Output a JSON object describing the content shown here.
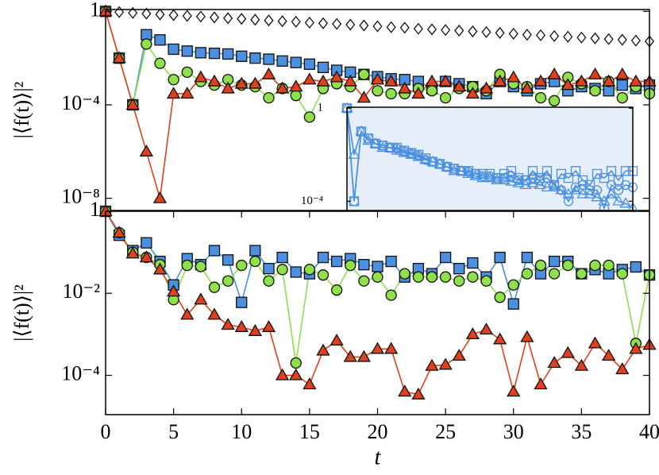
{
  "chart_data": [
    {
      "type": "line",
      "yscale": "log",
      "ylabel": "|⟨f(t)⟩|²",
      "xlim": [
        0,
        40
      ],
      "ylim": [
        3e-09,
        1.2
      ],
      "yticks": [
        1,
        {
          "value": 0.0001,
          "label": "10⁻⁴"
        },
        {
          "value": 1e-08,
          "label": "10⁻⁸"
        }
      ],
      "x": [
        0,
        1,
        2,
        3,
        4,
        5,
        6,
        7,
        8,
        9,
        10,
        11,
        12,
        13,
        14,
        15,
        16,
        17,
        18,
        19,
        20,
        21,
        22,
        23,
        24,
        25,
        26,
        27,
        28,
        29,
        30,
        31,
        32,
        33,
        34,
        35,
        36,
        37,
        38,
        39,
        40
      ],
      "series": [
        {
          "marker": "diamond",
          "line": false,
          "color": "#ffffff",
          "values": [
            1,
            0.93,
            0.86,
            0.8,
            0.74,
            0.69,
            0.64,
            0.6,
            0.55,
            0.51,
            0.48,
            0.44,
            0.41,
            0.38,
            0.36,
            0.33,
            0.31,
            0.29,
            0.27,
            0.25,
            0.23,
            0.21,
            0.2,
            0.18,
            0.17,
            0.16,
            0.15,
            0.14,
            0.13,
            0.12,
            0.11,
            0.1,
            0.095,
            0.088,
            0.082,
            0.076,
            0.07,
            0.065,
            0.061,
            0.056,
            0.052
          ]
        },
        {
          "marker": "square",
          "line": true,
          "color": "#4a8fe0",
          "values": [
            1,
            0.01,
            0.0001,
            0.1,
            0.06,
            0.024,
            0.02,
            0.017,
            0.016,
            0.015,
            0.012,
            0.01,
            0.009,
            0.0075,
            0.0065,
            0.0055,
            0.004,
            0.003,
            0.0025,
            0.002,
            0.0016,
            0.0013,
            0.0012,
            0.001,
            0.0005,
            0.001,
            0.0008,
            0.0006,
            0.0003,
            0.001,
            0.0006,
            0.0004,
            0.0008,
            0.001,
            0.0004,
            0.0006,
            0.0005,
            0.0004,
            0.0007,
            0.0005,
            0.0007
          ]
        },
        {
          "marker": "circle",
          "line": true,
          "color": "#8fe04a",
          "values": [
            1,
            0.01,
            0.0001,
            0.04,
            0.006,
            0.0012,
            0.0025,
            0.001,
            0.0007,
            0.0012,
            0.0007,
            0.0006,
            0.0002,
            0.0005,
            0.00025,
            3e-05,
            0.0005,
            0.0008,
            0.0006,
            0.002,
            0.0004,
            0.0003,
            0.0003,
            0.0005,
            0.0004,
            0.0002,
            0.0005,
            0.0006,
            0.0004,
            0.002,
            0.0008,
            0.0006,
            0.0002,
            0.00015,
            0.0015,
            0.0008,
            0.0004,
            0.001,
            0.0002,
            0.0006,
            0.0003
          ]
        },
        {
          "marker": "triangle",
          "line": true,
          "color": "#e0401e",
          "values": [
            1,
            0.01,
            0.0001,
            1e-06,
            1e-08,
            0.0003,
            0.0003,
            0.0015,
            0.001,
            0.0005,
            0.0008,
            0.0008,
            0.002,
            0.0005,
            0.0006,
            0.0012,
            0.001,
            0.0015,
            0.001,
            0.0002,
            0.0012,
            0.001,
            0.0005,
            0.0003,
            0.001,
            0.001,
            0.0006,
            0.0003,
            0.0005,
            0.001,
            0.0015,
            0.0005,
            0.001,
            0.002,
            0.0007,
            0.001,
            0.002,
            0.001,
            0.002,
            0.001,
            0.001
          ]
        }
      ]
    },
    {
      "type": "line",
      "yscale": "log",
      "background": "#e6eefa",
      "open_markers": true,
      "xlim": [
        0,
        40
      ],
      "ylim": [
        4e-05,
        1.1
      ],
      "yticks": [
        1,
        {
          "value": 0.0001,
          "label": "10⁻⁴"
        }
      ],
      "x": [
        0,
        1,
        2,
        3,
        4,
        5,
        6,
        7,
        8,
        9,
        10,
        11,
        12,
        13,
        14,
        15,
        16,
        17,
        18,
        19,
        20,
        21,
        22,
        23,
        24,
        25,
        26,
        27,
        28,
        29,
        30,
        31,
        32,
        33,
        34,
        35,
        36,
        37,
        38,
        39,
        40
      ],
      "series": [
        {
          "marker": "square",
          "line": true,
          "color": "#4a8fe0",
          "values": [
            1,
            0.0001,
            0.1,
            0.05,
            0.03,
            0.025,
            0.02,
            0.02,
            0.015,
            0.012,
            0.01,
            0.007,
            0.005,
            0.004,
            0.003,
            0.0025,
            0.002,
            0.002,
            0.0015,
            0.0015,
            0.0015,
            0.001,
            0.0015,
            0.002,
            0.001,
            0.0008,
            0.002,
            0.001,
            0.002,
            0.0005,
            0.0015,
            0.001,
            0.002,
            0.0008,
            0.0005,
            0.0015,
            0.001,
            0.002,
            0.0008,
            0.002,
            0.002
          ]
        },
        {
          "marker": "circle",
          "line": true,
          "color": "#4a8fe0",
          "values": [
            1,
            0.0001,
            0.1,
            0.05,
            0.03,
            0.025,
            0.02,
            0.018,
            0.014,
            0.011,
            0.009,
            0.006,
            0.005,
            0.004,
            0.003,
            0.0025,
            0.002,
            0.0018,
            0.0015,
            0.0012,
            0.0012,
            0.001,
            0.001,
            0.0012,
            0.0008,
            0.0008,
            0.001,
            0.0008,
            0.001,
            0.0005,
            0.0003,
            0.0001,
            0.0004,
            0.0005,
            0.0003,
            0.0003,
            5e-05,
            0.0005,
            0.0003,
            0.0005,
            0.0004
          ]
        },
        {
          "marker": "triangle",
          "line": true,
          "color": "#4a8fe0",
          "values": [
            1,
            0.01,
            0.1,
            0.04,
            0.03,
            0.02,
            0.02,
            0.015,
            0.012,
            0.01,
            0.008,
            0.006,
            0.005,
            0.004,
            0.003,
            0.002,
            0.002,
            0.0015,
            0.0012,
            0.001,
            0.001,
            0.0008,
            0.0008,
            0.0007,
            0.0006,
            0.0005,
            0.0006,
            0.0005,
            0.0004,
            0.0004,
            0.0003,
            0.0002,
            0.0003,
            0.0002,
            0.0002,
            0.00015,
            0.0001,
            0.0002,
            0.0001,
            8e-05,
            5e-05
          ]
        }
      ]
    },
    {
      "type": "line",
      "yscale": "log",
      "ylabel": "|⟨f(t)⟩|²",
      "xlabel": "t",
      "xlim": [
        0,
        40
      ],
      "ylim": [
        1.1e-05,
        1
      ],
      "xticks": [
        0,
        5,
        10,
        15,
        20,
        25,
        30,
        35,
        40
      ],
      "yticks": [
        1,
        {
          "value": 0.01,
          "label": "10⁻²"
        },
        {
          "value": 0.0001,
          "label": "10⁻⁴"
        }
      ],
      "x": [
        0,
        1,
        2,
        3,
        4,
        5,
        6,
        7,
        8,
        9,
        10,
        11,
        12,
        13,
        14,
        15,
        16,
        17,
        18,
        19,
        20,
        21,
        22,
        23,
        24,
        25,
        26,
        27,
        28,
        29,
        30,
        31,
        32,
        33,
        34,
        35,
        36,
        37,
        38,
        39,
        40
      ],
      "series": [
        {
          "marker": "square",
          "line": true,
          "color": "#4a8fe0",
          "values": [
            1,
            0.26,
            0.11,
            0.17,
            0.06,
            0.016,
            0.07,
            0.05,
            0.11,
            0.065,
            0.006,
            0.11,
            0.04,
            0.075,
            0.033,
            0.03,
            0.075,
            0.06,
            0.07,
            0.05,
            0.045,
            0.06,
            0.025,
            0.04,
            0.03,
            0.075,
            0.04,
            0.055,
            0.025,
            0.075,
            0.0055,
            0.075,
            0.03,
            0.06,
            0.06,
            0.03,
            0.038,
            0.03,
            0.038,
            0.044,
            0.028
          ]
        },
        {
          "marker": "circle",
          "line": true,
          "color": "#8fe04a",
          "values": [
            1,
            0.3,
            0.1,
            0.075,
            0.05,
            0.007,
            0.048,
            0.045,
            0.014,
            0.02,
            0.048,
            0.06,
            0.02,
            0.038,
            0.0002,
            0.038,
            0.028,
            0.012,
            0.048,
            0.02,
            0.025,
            0.009,
            0.03,
            0.025,
            0.025,
            0.025,
            0.02,
            0.025,
            0.02,
            0.008,
            0.016,
            0.03,
            0.048,
            0.03,
            0.048,
            0.03,
            0.048,
            0.048,
            0.03,
            0.0006,
            0.028
          ]
        },
        {
          "marker": "triangle",
          "line": true,
          "color": "#e0401e",
          "values": [
            1,
            0.3,
            0.093,
            0.075,
            0.038,
            0.011,
            0.003,
            0.007,
            0.003,
            0.0017,
            0.0015,
            0.0012,
            0.0015,
            0.0001,
            0.0001,
            6e-05,
            0.0004,
            0.0007,
            0.00028,
            0.00028,
            0.00044,
            0.00044,
            4e-05,
            3.4e-05,
            0.00017,
            0.00018,
            0.0003,
            0.001,
            0.0013,
            0.00075,
            4e-05,
            0.00085,
            6e-05,
            0.0002,
            0.00035,
            0.00017,
            0.0006,
            0.0003,
            0.00014,
            0.00044,
            0.00055
          ]
        }
      ]
    }
  ]
}
